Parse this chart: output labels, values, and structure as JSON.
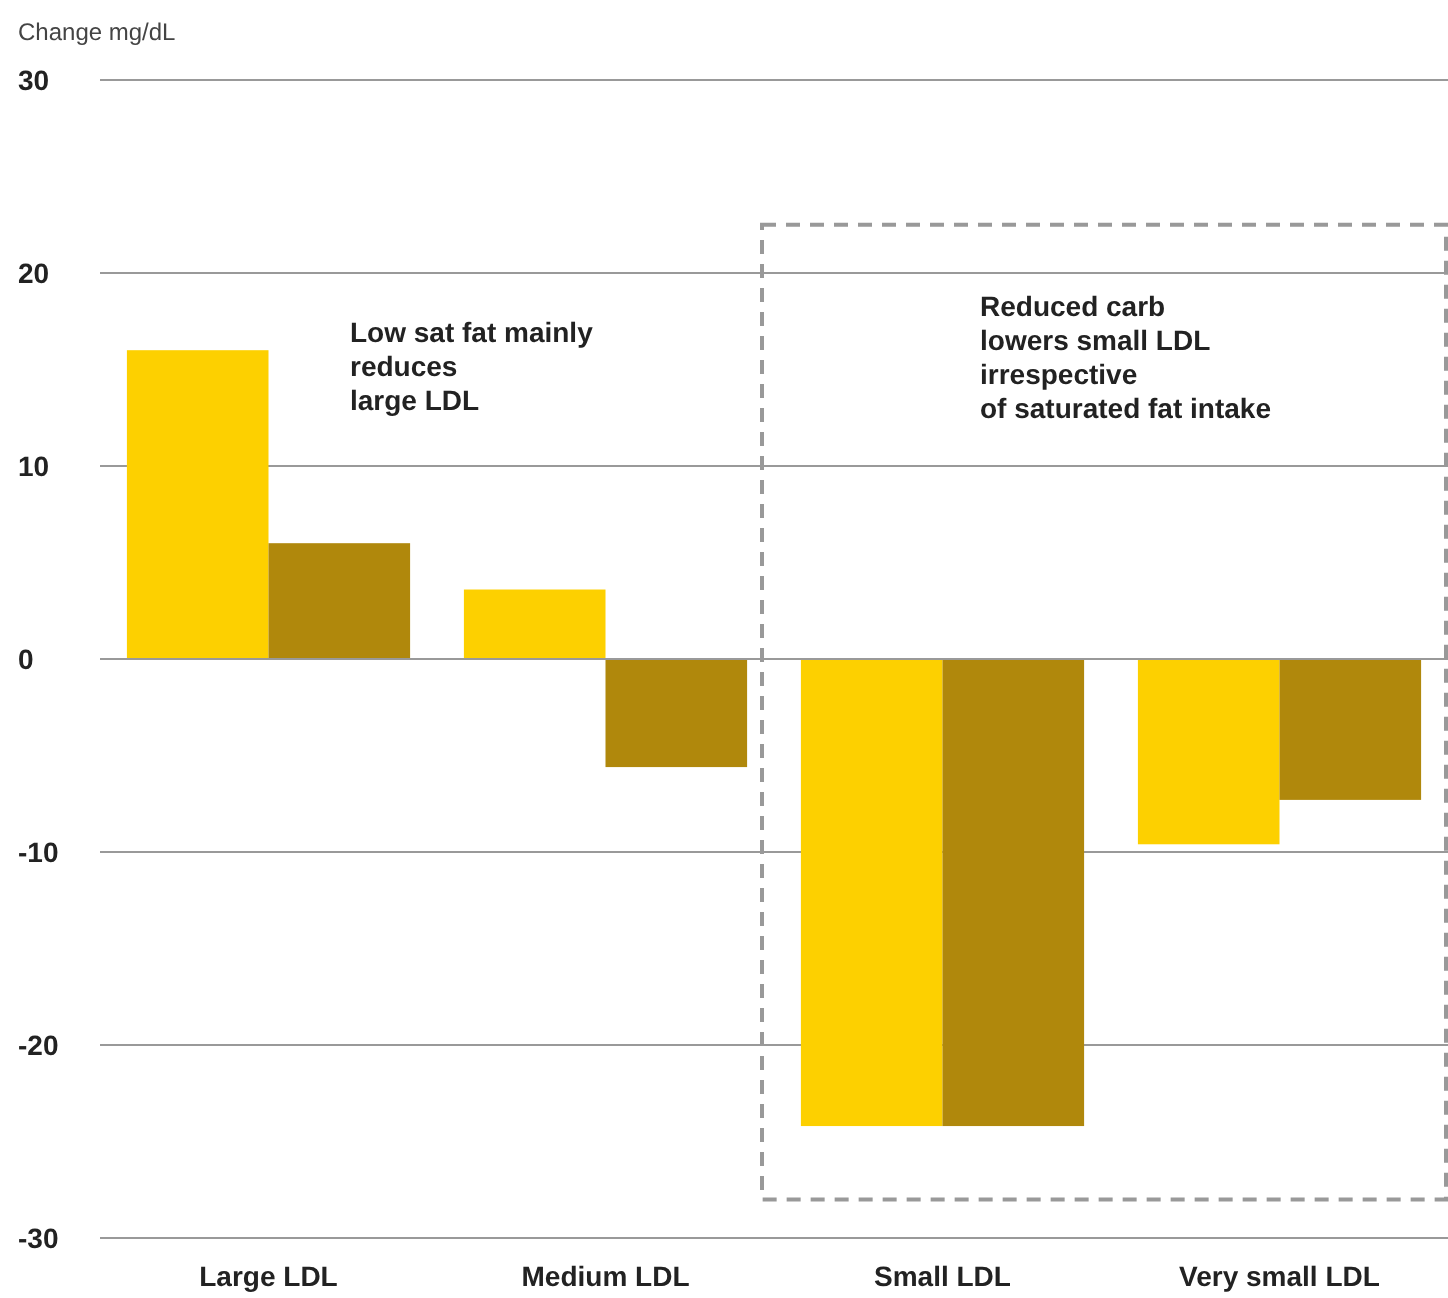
{
  "chart_data": {
    "type": "bar",
    "ylabel": "Change mg/dL",
    "categories": [
      "Large LDL",
      "Medium LDL",
      "Small LDL",
      "Very small LDL"
    ],
    "series": [
      {
        "color": "#fdd000",
        "values": [
          16.0,
          3.6,
          -24.2,
          -9.6
        ]
      },
      {
        "color": "#b0880c",
        "values": [
          6.0,
          -5.6,
          -24.2,
          -7.3
        ]
      }
    ],
    "ylim": [
      -30,
      30
    ],
    "yticks": [
      -30,
      -20,
      -10,
      0,
      10,
      20,
      30
    ],
    "grid": "y",
    "annotations": [
      "Low sat fat mainly\nreduces\nlarge LDL",
      "Reduced carb\nlowers small LDL\nirrespective\nof saturated fat intake"
    ]
  }
}
